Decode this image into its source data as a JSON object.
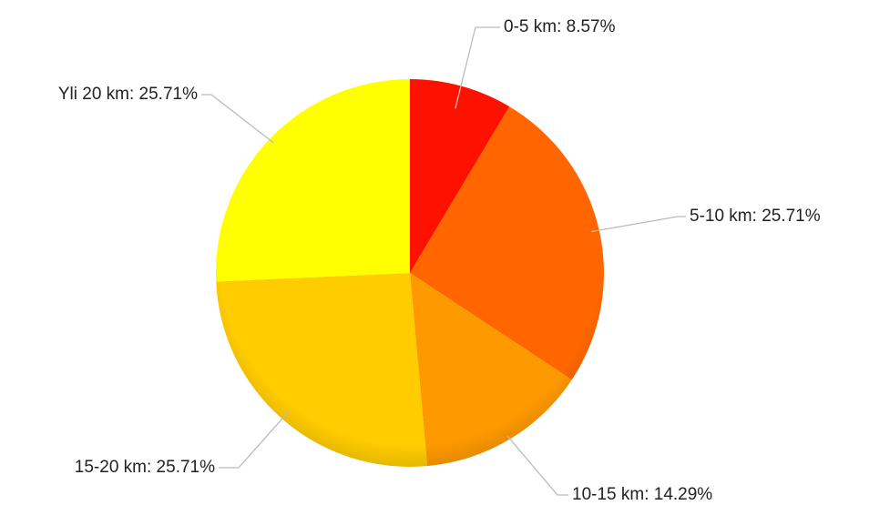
{
  "chart_data": {
    "type": "pie",
    "title": "",
    "slices": [
      {
        "label": "0-5 km",
        "value": 8.57,
        "display": "0-5 km: 8.57%",
        "color": "#ff1100"
      },
      {
        "label": "5-10 km",
        "value": 25.71,
        "display": "5-10 km: 25.71%",
        "color": "#ff6600"
      },
      {
        "label": "10-15 km",
        "value": 14.29,
        "display": "10-15 km: 14.29%",
        "color": "#ff9900"
      },
      {
        "label": "15-20 km",
        "value": 25.71,
        "display": "15-20 km: 25.71%",
        "color": "#ffcc00"
      },
      {
        "label": "Yli 20 km",
        "value": 25.71,
        "display": "Yli 20 km: 25.71%",
        "color": "#ffff00"
      }
    ],
    "legend": "none",
    "labels": "outside-with-leader-lines"
  }
}
